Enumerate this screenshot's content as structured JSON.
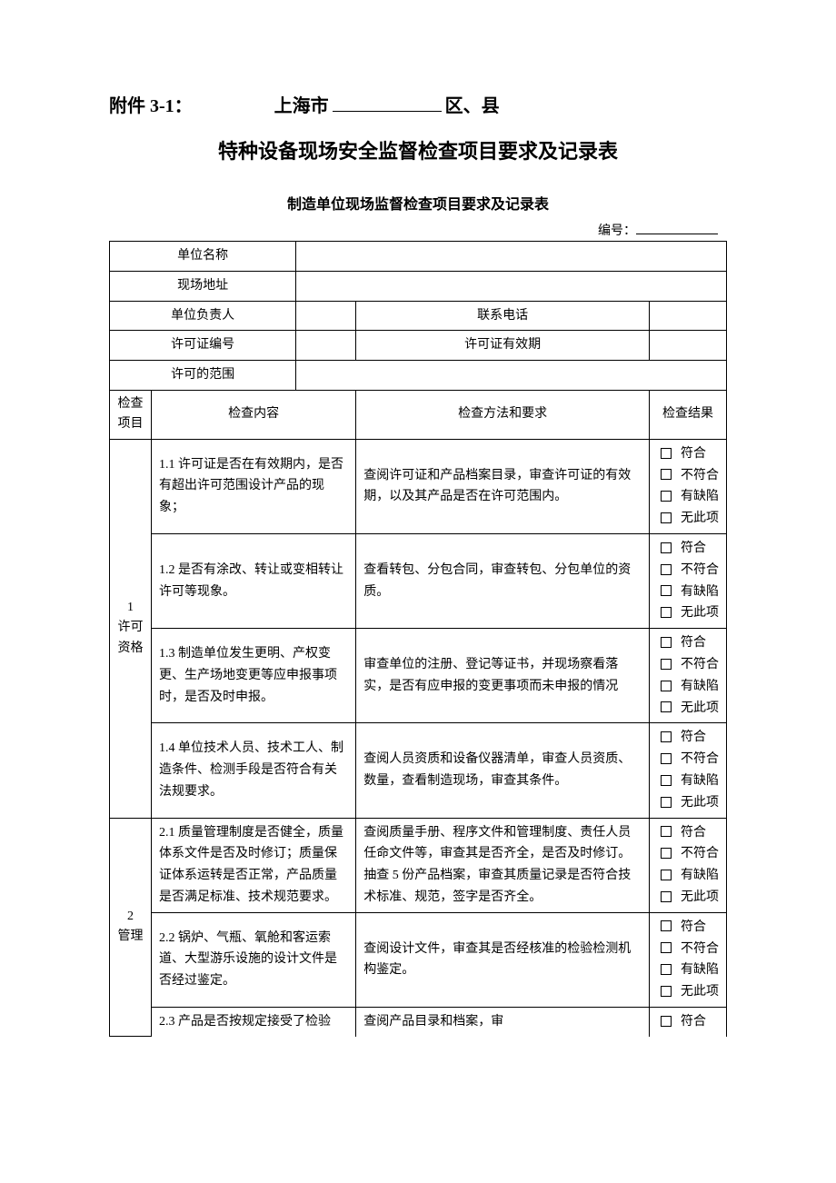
{
  "header": {
    "attachment": "附件 3-1：",
    "city_prefix": "上海市",
    "city_suffix": "区、县"
  },
  "main_title": "特种设备现场安全监督检查项目要求及记录表",
  "sub_title": "制造单位现场监督检查项目要求及记录表",
  "serial_label": "编号：",
  "info_fields": {
    "unit_name": "单位名称",
    "site_address": "现场地址",
    "responsible": "单位负责人",
    "phone": "联系电话",
    "license_no": "许可证编号",
    "license_valid": "许可证有效期",
    "license_scope": "许可的范围"
  },
  "columns": {
    "category": "检查\n项目",
    "content": "检查内容",
    "method": "检查方法和要求",
    "result": "检查结果"
  },
  "result_options": [
    "符合",
    "不符合",
    "有缺陷",
    "无此项"
  ],
  "categories": [
    {
      "num": "1",
      "name": "许可\n资格"
    },
    {
      "num": "2",
      "name": "管理"
    }
  ],
  "rows": [
    {
      "content": "1.1 许可证是否在有效期内，是否有超出许可范围设计产品的现象；",
      "method": "查阅许可证和产品档案目录，审查许可证的有效期，以及其产品是否在许可范围内。"
    },
    {
      "content": "1.2 是否有涂改、转让或变相转让许可等现象。",
      "method": "查看转包、分包合同，审查转包、分包单位的资质。"
    },
    {
      "content": "1.3 制造单位发生更明、产权变更、生产场地变更等应申报事项时，是否及时申报。",
      "method": "审查单位的注册、登记等证书，并现场察看落实，是否有应申报的变更事项而未申报的情况"
    },
    {
      "content": "1.4 单位技术人员、技术工人、制造条件、检测手段是否符合有关法规要求。",
      "method": "查阅人员资质和设备仪器清单，审查人员资质、数量，查看制造现场，审查其条件。"
    },
    {
      "content": "2.1 质量管理制度是否健全，质量体系文件是否及时修订；质量保证体系运转是否正常，产品质量是否满足标准、技术规范要求。",
      "method": "查阅质量手册、程序文件和管理制度、责任人员任命文件等，审查其是否齐全，是否及时修订。抽查 5 份产品档案，审查其质量记录是否符合技术标准、规范，签字是否齐全。"
    },
    {
      "content": "2.2 锅炉、气瓶、氧舱和客运索道、大型游乐设施的设计文件是否经过鉴定。",
      "method": "查阅设计文件，审查其是否经核准的检验检测机构鉴定。"
    },
    {
      "content": "2.3 产品是否按规定接受了检验",
      "method": "查阅产品目录和档案，审",
      "partial": true
    }
  ]
}
